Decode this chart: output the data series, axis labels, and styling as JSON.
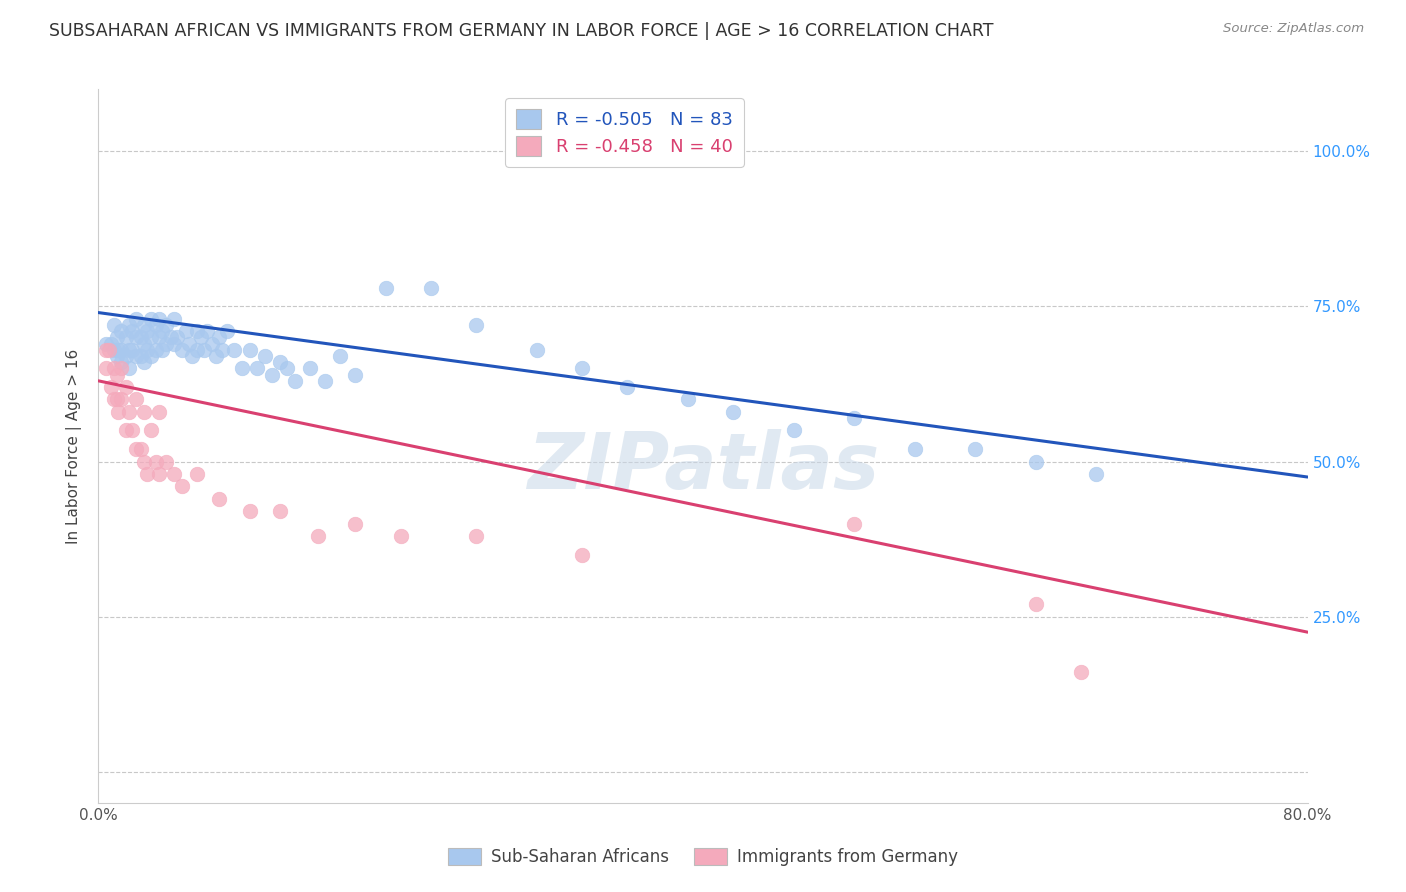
{
  "title": "SUBSAHARAN AFRICAN VS IMMIGRANTS FROM GERMANY IN LABOR FORCE | AGE > 16 CORRELATION CHART",
  "source": "Source: ZipAtlas.com",
  "ylabel": "In Labor Force | Age > 16",
  "ytick_labels": [
    "",
    "25.0%",
    "50.0%",
    "75.0%",
    "100.0%"
  ],
  "ytick_values": [
    0.0,
    0.25,
    0.5,
    0.75,
    1.0
  ],
  "xlim": [
    0.0,
    0.8
  ],
  "ylim": [
    -0.05,
    1.1
  ],
  "blue_R": -0.505,
  "blue_N": 83,
  "pink_R": -0.458,
  "pink_N": 40,
  "blue_color": "#A8C8EE",
  "blue_line_color": "#2255BB",
  "pink_color": "#F4AABC",
  "pink_line_color": "#D94070",
  "legend_label_blue": "Sub-Saharan Africans",
  "legend_label_pink": "Immigrants from Germany",
  "blue_scatter_x": [
    0.005,
    0.008,
    0.01,
    0.01,
    0.012,
    0.012,
    0.013,
    0.015,
    0.015,
    0.015,
    0.018,
    0.018,
    0.02,
    0.02,
    0.02,
    0.022,
    0.022,
    0.025,
    0.025,
    0.025,
    0.028,
    0.028,
    0.03,
    0.03,
    0.03,
    0.032,
    0.032,
    0.035,
    0.035,
    0.035,
    0.038,
    0.038,
    0.04,
    0.04,
    0.042,
    0.042,
    0.045,
    0.045,
    0.048,
    0.05,
    0.05,
    0.052,
    0.055,
    0.058,
    0.06,
    0.062,
    0.065,
    0.065,
    0.068,
    0.07,
    0.072,
    0.075,
    0.078,
    0.08,
    0.082,
    0.085,
    0.09,
    0.095,
    0.1,
    0.105,
    0.11,
    0.115,
    0.12,
    0.125,
    0.13,
    0.14,
    0.15,
    0.16,
    0.17,
    0.19,
    0.22,
    0.25,
    0.29,
    0.32,
    0.35,
    0.39,
    0.42,
    0.46,
    0.5,
    0.54,
    0.58,
    0.62,
    0.66
  ],
  "blue_scatter_y": [
    0.69,
    0.69,
    0.72,
    0.68,
    0.7,
    0.67,
    0.68,
    0.71,
    0.68,
    0.66,
    0.7,
    0.67,
    0.72,
    0.68,
    0.65,
    0.71,
    0.68,
    0.73,
    0.7,
    0.67,
    0.7,
    0.67,
    0.72,
    0.69,
    0.66,
    0.71,
    0.68,
    0.73,
    0.7,
    0.67,
    0.72,
    0.68,
    0.73,
    0.7,
    0.71,
    0.68,
    0.72,
    0.69,
    0.7,
    0.73,
    0.69,
    0.7,
    0.68,
    0.71,
    0.69,
    0.67,
    0.71,
    0.68,
    0.7,
    0.68,
    0.71,
    0.69,
    0.67,
    0.7,
    0.68,
    0.71,
    0.68,
    0.65,
    0.68,
    0.65,
    0.67,
    0.64,
    0.66,
    0.65,
    0.63,
    0.65,
    0.63,
    0.67,
    0.64,
    0.78,
    0.78,
    0.72,
    0.68,
    0.65,
    0.62,
    0.6,
    0.58,
    0.55,
    0.57,
    0.52,
    0.52,
    0.5,
    0.48
  ],
  "pink_scatter_x": [
    0.005,
    0.005,
    0.007,
    0.008,
    0.01,
    0.01,
    0.012,
    0.012,
    0.013,
    0.015,
    0.015,
    0.018,
    0.018,
    0.02,
    0.022,
    0.025,
    0.025,
    0.028,
    0.03,
    0.03,
    0.032,
    0.035,
    0.038,
    0.04,
    0.04,
    0.045,
    0.05,
    0.055,
    0.065,
    0.08,
    0.1,
    0.12,
    0.145,
    0.17,
    0.2,
    0.25,
    0.32,
    0.5,
    0.62,
    0.65
  ],
  "pink_scatter_y": [
    0.68,
    0.65,
    0.68,
    0.62,
    0.65,
    0.6,
    0.64,
    0.6,
    0.58,
    0.65,
    0.6,
    0.62,
    0.55,
    0.58,
    0.55,
    0.6,
    0.52,
    0.52,
    0.58,
    0.5,
    0.48,
    0.55,
    0.5,
    0.58,
    0.48,
    0.5,
    0.48,
    0.46,
    0.48,
    0.44,
    0.42,
    0.42,
    0.38,
    0.4,
    0.38,
    0.38,
    0.35,
    0.4,
    0.27,
    0.16
  ],
  "blue_line_x": [
    0.0,
    0.8
  ],
  "blue_line_y": [
    0.74,
    0.475
  ],
  "pink_line_x": [
    0.0,
    0.8
  ],
  "pink_line_y": [
    0.63,
    0.225
  ],
  "watermark": "ZIPatlas",
  "background_color": "#FFFFFF",
  "grid_color": "#C8C8C8",
  "title_color": "#333333",
  "axis_label_color": "#444444",
  "ytick_color": "#3399FF",
  "xtick_color": "#555555"
}
